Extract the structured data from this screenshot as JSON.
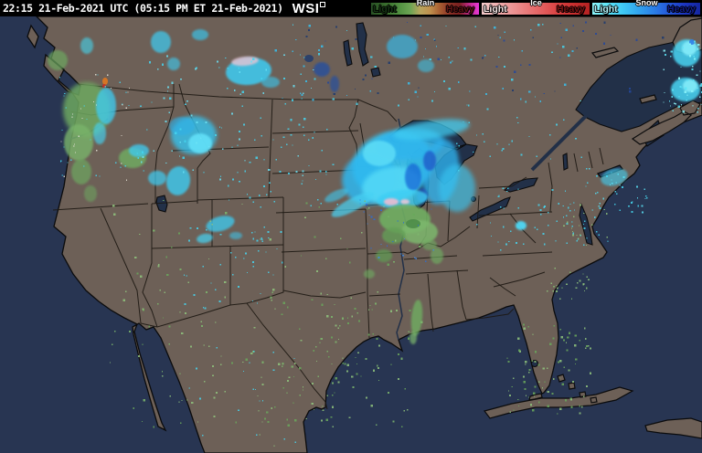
{
  "header": {
    "timestamp": "22:15 21-Feb-2021 UTC (05:15 PM ET 21-Feb-2021)",
    "logo": "WSI",
    "bg": "#000000",
    "fg": "#ffffff"
  },
  "legend": {
    "groups": [
      {
        "id": "rain",
        "label": "Rain",
        "light_label": "Light",
        "heavy_label": "Heavy",
        "gradient": [
          "#2a5226",
          "#336329",
          "#417a33",
          "#549343",
          "#6ca554",
          "#b8a55e",
          "#c0914e",
          "#a85f33",
          "#8c3226",
          "#7a1f1f",
          "#c22a8a",
          "#e838d8"
        ],
        "light_color": "#163814",
        "heavy_color": "#601414",
        "title_color": "#ffffff"
      },
      {
        "id": "ice",
        "label": "Ice",
        "light_label": "Light",
        "heavy_label": "Heavy",
        "gradient": [
          "#f4caca",
          "#f0b0b0",
          "#ec9494",
          "#e87878",
          "#e25c5c",
          "#d84040",
          "#c82e2e",
          "#b42222"
        ],
        "light_color": "#f8e8e8",
        "heavy_color": "#7a1212",
        "title_color": "#ffffff"
      },
      {
        "id": "snow",
        "label": "Snow",
        "light_label": "Light",
        "heavy_label": "Heavy",
        "gradient": [
          "#8df6fa",
          "#5ce4f8",
          "#3fc8f4",
          "#32a4ee",
          "#2b7ee6",
          "#2456d8",
          "#1c35c0",
          "#1426a0"
        ],
        "light_color": "#aef2fa",
        "heavy_color": "#101c8c",
        "title_color": "#ffffff"
      }
    ]
  },
  "map": {
    "colors": {
      "land": "#6d6057",
      "water": "#283552",
      "lake": "#223048",
      "coast": "#0b0b0c",
      "border": "#1c1712",
      "river": "#223048"
    },
    "precip_blobs": [
      [
        430,
        162,
        45,
        36,
        -15,
        "#38c4f2",
        0.9,
        1
      ],
      [
        404,
        178,
        30,
        28,
        -20,
        "#2eb8f0",
        0.85,
        1
      ],
      [
        428,
        185,
        32,
        20,
        -10,
        "#52d8f6",
        0.9,
        1
      ],
      [
        448,
        140,
        38,
        17,
        -5,
        "#2fb4ee",
        0.8,
        1
      ],
      [
        472,
        124,
        42,
        10,
        -8,
        "#40ccf2",
        0.75,
        1
      ],
      [
        482,
        170,
        20,
        36,
        8,
        "#2fb0ec",
        0.8,
        1
      ],
      [
        500,
        188,
        20,
        26,
        0,
        "#38c4f0",
        0.65,
        1
      ],
      [
        415,
        150,
        18,
        14,
        0,
        "#60e0f8",
        0.8,
        2
      ],
      [
        452,
        176,
        9,
        15,
        0,
        "#1766d6",
        0.75,
        2
      ],
      [
        470,
        158,
        7,
        11,
        0,
        "#1c50c4",
        0.7,
        2
      ],
      [
        462,
        196,
        6,
        8,
        0,
        "#2458cc",
        0.6,
        2
      ],
      [
        386,
        206,
        26,
        7,
        -28,
        "#46d2f4",
        0.7,
        2
      ],
      [
        368,
        196,
        14,
        5,
        -25,
        "#3cc8f0",
        0.6,
        2
      ],
      [
        440,
        200,
        28,
        10,
        -5,
        "#3ecef4",
        0.8,
        2
      ],
      [
        428,
        203,
        8,
        4,
        0,
        "#eebcd0",
        0.9,
        2
      ],
      [
        443,
        203,
        5,
        3,
        0,
        "#f0c8d8",
        0.85,
        2
      ],
      [
        443,
        222,
        28,
        16,
        0,
        "#6fae62",
        0.9,
        2
      ],
      [
        459,
        236,
        20,
        13,
        0,
        "#7db86d",
        0.85,
        2
      ],
      [
        431,
        240,
        13,
        9,
        0,
        "#649e57",
        0.8,
        2
      ],
      [
        452,
        227,
        8,
        5,
        0,
        "#4a8a46",
        0.85,
        3
      ],
      [
        470,
        250,
        8,
        6,
        0,
        "#6fae62",
        0.6,
        2
      ],
      [
        272,
        60,
        25,
        15,
        -5,
        "#3ecdf4",
        0.85,
        2
      ],
      [
        268,
        49,
        15,
        5,
        -5,
        "#e8c4d4",
        0.8,
        2
      ],
      [
        296,
        72,
        10,
        6,
        0,
        "#38c8f0",
        0.6,
        2
      ],
      [
        212,
        130,
        25,
        21,
        0,
        "#36c4f0",
        0.8,
        1
      ],
      [
        219,
        139,
        13,
        11,
        0,
        "#62e0f8",
        0.9,
        2
      ],
      [
        199,
        120,
        14,
        10,
        0,
        "#2fb0e8",
        0.6,
        2
      ],
      [
        195,
        180,
        13,
        16,
        10,
        "#3cccf2",
        0.8,
        2
      ],
      [
        172,
        177,
        10,
        8,
        0,
        "#3ecdf4",
        0.7,
        2
      ],
      [
        241,
        227,
        16,
        8,
        -15,
        "#3cccf2",
        0.75,
        2
      ],
      [
        224,
        243,
        9,
        5,
        -10,
        "#45d4f4",
        0.7,
        2
      ],
      [
        258,
        240,
        7,
        4,
        0,
        "#3cc8f0",
        0.55,
        2
      ],
      [
        145,
        155,
        15,
        11,
        0,
        "#6fae62",
        0.8,
        2
      ],
      [
        152,
        147,
        11,
        7,
        0,
        "#3ecdf4",
        0.75,
        2
      ],
      [
        95,
        102,
        26,
        30,
        0,
        "#6da861",
        0.85,
        1
      ],
      [
        86,
        138,
        16,
        20,
        0,
        "#79b46b",
        0.8,
        2
      ],
      [
        116,
        98,
        11,
        20,
        0,
        "#3ecdf4",
        0.75,
        2
      ],
      [
        109,
        128,
        7,
        12,
        0,
        "#44d2f2",
        0.65,
        2
      ],
      [
        115,
        71,
        3,
        4,
        0,
        "#e07820",
        0.9,
        3
      ],
      [
        114,
        76,
        2,
        2,
        0,
        "#c83020",
        0.9,
        3
      ],
      [
        89,
        170,
        11,
        14,
        0,
        "#6da861",
        0.7,
        2
      ],
      [
        99,
        194,
        7,
        9,
        0,
        "#6da861",
        0.55,
        2
      ],
      [
        63,
        48,
        11,
        11,
        0,
        "#6da861",
        0.7,
        2
      ],
      [
        95,
        32,
        7,
        9,
        0,
        "#45d5ee",
        0.6,
        2
      ],
      [
        176,
        28,
        11,
        12,
        0,
        "#3ecdf4",
        0.7,
        2
      ],
      [
        190,
        52,
        7,
        7,
        0,
        "#3ecdf4",
        0.6,
        2
      ],
      [
        219,
        20,
        9,
        6,
        0,
        "#38c8f0",
        0.65,
        2
      ],
      [
        440,
        33,
        17,
        13,
        0,
        "#34bcee",
        0.65,
        2
      ],
      [
        466,
        54,
        9,
        7,
        0,
        "#38c8f0",
        0.55,
        2
      ],
      [
        352,
        58,
        9,
        8,
        0,
        "#27509e",
        0.8,
        2
      ],
      [
        366,
        74,
        5,
        9,
        0,
        "#27509e",
        0.7,
        2
      ],
      [
        338,
        46,
        5,
        4,
        0,
        "#1d3a6e",
        0.8,
        3
      ],
      [
        751,
        40,
        15,
        15,
        0,
        "#48d6f5",
        0.85,
        2
      ],
      [
        754,
        35,
        8,
        8,
        0,
        "#84ecfa",
        0.9,
        2
      ],
      [
        757,
        28,
        3,
        3,
        0,
        "#2f7fe8",
        0.9,
        3
      ],
      [
        750,
        80,
        16,
        13,
        0,
        "#48d6f5",
        0.85,
        2
      ],
      [
        755,
        76,
        8,
        7,
        0,
        "#84ecfa",
        0.9,
        2
      ],
      [
        570,
        229,
        6,
        5,
        0,
        "#4fd8f6",
        0.95,
        2
      ],
      [
        672,
        176,
        15,
        9,
        -15,
        "#40d0f4",
        0.6,
        2
      ],
      [
        456,
        330,
        6,
        20,
        5,
        "#6fae62",
        0.8,
        2
      ],
      [
        452,
        352,
        4,
        7,
        0,
        "#7db86d",
        0.7,
        2
      ],
      [
        420,
        262,
        9,
        7,
        0,
        "#5f9c52",
        0.7,
        2
      ],
      [
        404,
        282,
        6,
        5,
        0,
        "#6fae62",
        0.6,
        2
      ],
      [
        478,
        262,
        7,
        9,
        0,
        "#6fae62",
        0.65,
        2
      ]
    ],
    "speckles": [
      [
        120,
        200,
        340,
        250,
        160,
        7,
        1,
        2.5,
        [
          "#7db86d",
          "#6aa85c",
          "#8fc47d"
        ]
      ],
      [
        300,
        300,
        150,
        150,
        60,
        11,
        1,
        2.5,
        [
          "#7db86d",
          "#6aa85c",
          "#8fc47d"
        ]
      ],
      [
        390,
        200,
        90,
        70,
        25,
        13,
        1,
        2,
        [
          "#2b6fd8",
          "#3f8ae4"
        ]
      ],
      [
        150,
        40,
        200,
        140,
        90,
        17,
        1,
        2.5,
        [
          "#45d5ee",
          "#6ae2f5"
        ]
      ],
      [
        300,
        8,
        330,
        90,
        80,
        19,
        1,
        2.5,
        [
          "#45d5ee",
          "#38c0ec"
        ]
      ],
      [
        330,
        5,
        400,
        80,
        45,
        23,
        1,
        2.5,
        [
          "#1d3a6e",
          "#24489c"
        ]
      ],
      [
        520,
        185,
        120,
        70,
        45,
        29,
        1,
        2,
        [
          "#45d5ee"
        ]
      ],
      [
        640,
        165,
        70,
        50,
        40,
        31,
        1,
        2,
        [
          "#45d5ee",
          "#59e0f4"
        ]
      ],
      [
        615,
        205,
        50,
        45,
        35,
        37,
        1,
        2,
        [
          "#45d5ee",
          "#8fc47d"
        ]
      ],
      [
        595,
        275,
        50,
        35,
        25,
        41,
        1,
        2,
        [
          "#8fc47d",
          "#7db86d"
        ]
      ],
      [
        550,
        335,
        95,
        100,
        85,
        43,
        1,
        2.5,
        [
          "#8fc47d",
          "#6aa85c"
        ]
      ],
      [
        195,
        355,
        130,
        115,
        40,
        47,
        1,
        2,
        [
          "#8fc47d",
          "#45d5ee"
        ]
      ],
      [
        60,
        60,
        90,
        120,
        50,
        53,
        1,
        1.5,
        [
          "#e8e4d8",
          "#45d5ee"
        ]
      ],
      [
        480,
        90,
        160,
        80,
        30,
        59,
        1,
        2,
        [
          "#45d5ee"
        ]
      ],
      [
        725,
        25,
        43,
        80,
        50,
        61,
        1,
        2.5,
        [
          "#5ce4f8",
          "#8df6fa"
        ]
      ],
      [
        200,
        230,
        110,
        90,
        45,
        67,
        1,
        2,
        [
          "#45d5ee"
        ]
      ],
      [
        230,
        120,
        140,
        90,
        50,
        71,
        1,
        2,
        [
          "#45d5ee"
        ]
      ]
    ]
  }
}
